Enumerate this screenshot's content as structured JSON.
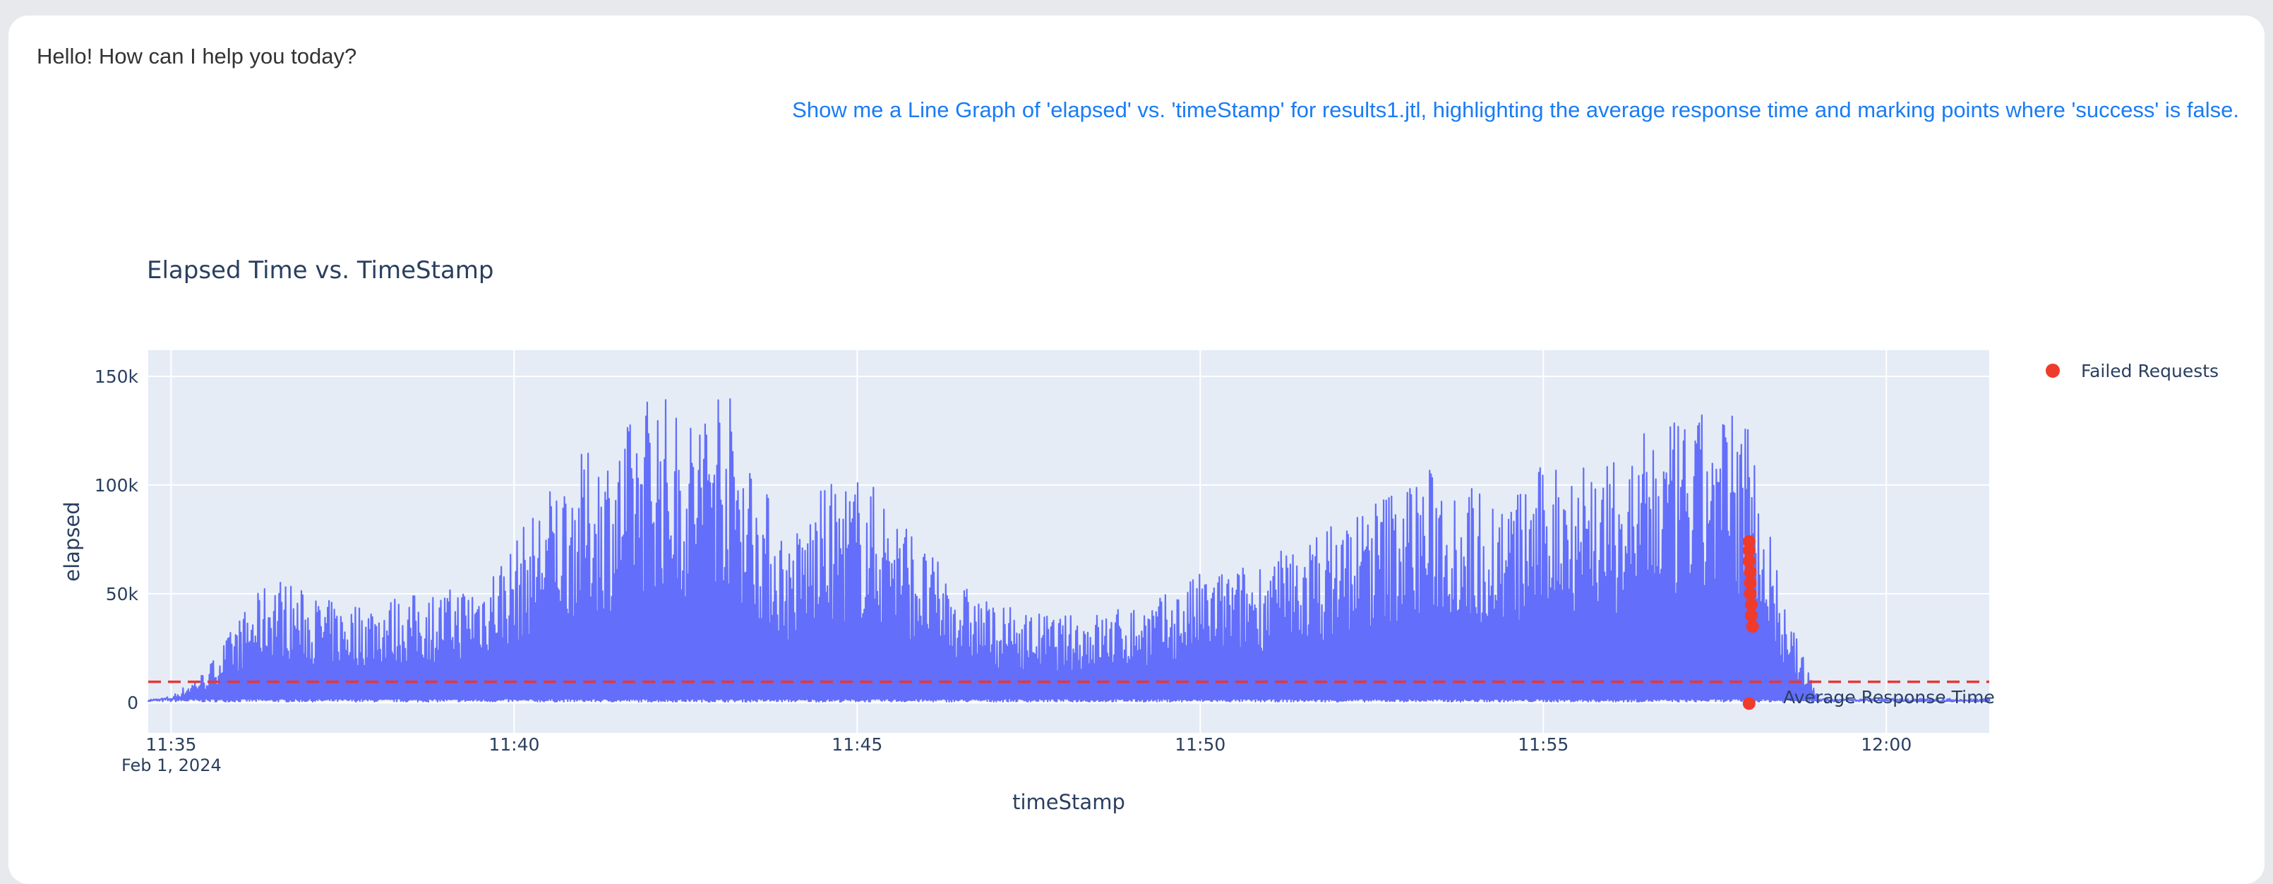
{
  "chat": {
    "greeting": "Hello! How can I help you today?",
    "user_message": "Show me a Line Graph of 'elapsed' vs. 'timeStamp' for results1.jtl, highlighting the average response time and marking points where 'success' is false."
  },
  "colors": {
    "line": "#636efa",
    "failed": "#ef3b2c",
    "avg_line": "#e53935",
    "plot_bg": "#e5ecf6",
    "user_text": "#1a7cf5"
  },
  "chart_data": {
    "type": "line",
    "title": "Elapsed Time vs. TimeStamp",
    "xlabel": "timeStamp",
    "ylabel": "elapsed",
    "x_start_label": "Feb 1, 2024",
    "xlim": [
      "11:34:40",
      "12:01:30"
    ],
    "ylim": [
      -14000,
      162000
    ],
    "x_ticks": [
      "11:35",
      "11:40",
      "11:45",
      "11:50",
      "11:55",
      "12:00"
    ],
    "y_ticks": [
      0,
      50000,
      100000,
      150000
    ],
    "y_tick_labels": [
      "0",
      "50k",
      "100k",
      "150k"
    ],
    "legend_position": "right",
    "legend": [
      "Failed Requests"
    ],
    "series": [
      {
        "name": "elapsed",
        "x": [
          "11:34:40",
          "11:35:00",
          "11:35:30",
          "11:36:00",
          "11:36:30",
          "11:37:00",
          "11:37:30",
          "11:38:00",
          "11:38:30",
          "11:39:00",
          "11:39:30",
          "11:40:00",
          "11:40:30",
          "11:41:00",
          "11:41:30",
          "11:42:00",
          "11:42:30",
          "11:43:00",
          "11:43:30",
          "11:44:00",
          "11:44:30",
          "11:45:00",
          "11:45:30",
          "11:46:00",
          "11:46:30",
          "11:47:00",
          "11:47:30",
          "11:48:00",
          "11:48:30",
          "11:49:00",
          "11:49:30",
          "11:50:00",
          "11:50:30",
          "11:51:00",
          "11:51:30",
          "11:52:00",
          "11:52:30",
          "11:53:00",
          "11:53:30",
          "11:54:00",
          "11:54:30",
          "11:55:00",
          "11:55:30",
          "11:56:00",
          "11:56:30",
          "11:57:00",
          "11:57:30",
          "11:58:00",
          "11:58:30",
          "11:59:00",
          "11:59:30",
          "12:00:00",
          "12:00:30",
          "12:01:00",
          "12:01:30"
        ],
        "y": [
          1000,
          3000,
          15000,
          40000,
          60000,
          50000,
          45000,
          48000,
          50000,
          52000,
          58000,
          75000,
          100000,
          115000,
          120000,
          150000,
          130000,
          155000,
          110000,
          75000,
          100000,
          105000,
          95000,
          70000,
          55000,
          45000,
          42000,
          40000,
          42000,
          45000,
          50000,
          60000,
          62000,
          68000,
          75000,
          85000,
          95000,
          105000,
          110000,
          100000,
          95000,
          110000,
          120000,
          110000,
          125000,
          130000,
          135000,
          135000,
          45000,
          2000,
          1500,
          1200,
          1000,
          1000,
          1000
        ]
      },
      {
        "name": "Failed Requests",
        "x": [
          "11:58:00",
          "11:58:00",
          "11:58:00",
          "11:58:01",
          "11:58:01",
          "11:58:01",
          "11:58:02",
          "11:58:02",
          "11:58:03",
          "11:58:00"
        ],
        "y": [
          74000,
          70000,
          65000,
          60000,
          55000,
          50000,
          45000,
          40000,
          35000,
          -500
        ]
      },
      {
        "name": "Average Response Time",
        "x": [
          "11:34:40",
          "12:01:30"
        ],
        "y": [
          9500,
          9500
        ]
      }
    ],
    "annotations": [
      "Average Response Time"
    ]
  }
}
